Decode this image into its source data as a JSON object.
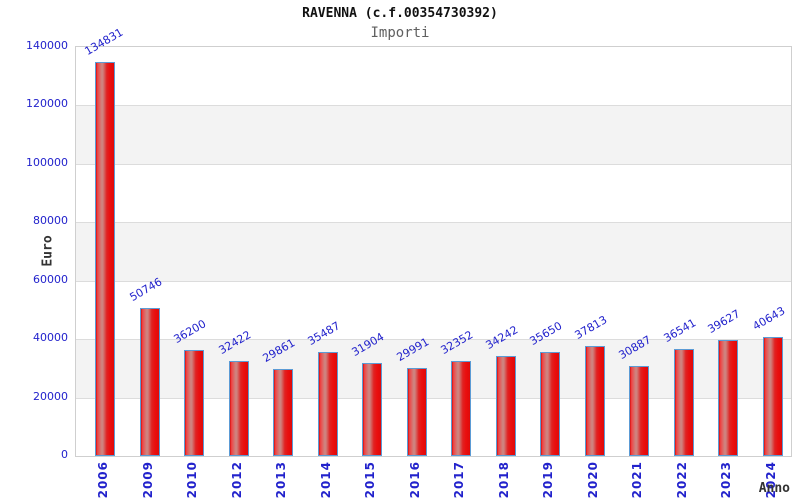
{
  "header": {
    "title": "RAVENNA (c.f.00354730392)",
    "subtitle": "Importi"
  },
  "chart_data": {
    "type": "bar",
    "title": "RAVENNA (c.f.00354730392)",
    "subtitle": "Importi",
    "xlabel": "Anno",
    "ylabel": "Euro",
    "categories": [
      "2006",
      "2009",
      "2010",
      "2012",
      "2013",
      "2014",
      "2015",
      "2016",
      "2017",
      "2018",
      "2019",
      "2020",
      "2021",
      "2022",
      "2023",
      "2024"
    ],
    "values": [
      134831,
      50746,
      36200,
      32422,
      29861,
      35487,
      31904,
      29991,
      32352,
      34242,
      35650,
      37813,
      30887,
      36541,
      39627,
      40643
    ],
    "bar_value_labels_shown": true,
    "ylim": [
      0,
      140000
    ],
    "yticks": [
      0,
      20000,
      40000,
      60000,
      80000,
      100000,
      120000,
      140000
    ],
    "grid": "alternating horizontal bands, light gridlines at each 20000",
    "legend_position": "none",
    "colors": {
      "bar_fill": "#ee1111",
      "bar_fill_highlight": "#cf827e",
      "bar_border": "#5b9bd5",
      "axis_text": "#2222cc",
      "title_text": "#111111",
      "subtitle_text": "#606060",
      "axis_title_text": "#333333",
      "band_gray": "#f3f3f3",
      "gridline": "#dcdcdc",
      "plot_border": "#cfcfcf",
      "background": "#ffffff"
    }
  }
}
